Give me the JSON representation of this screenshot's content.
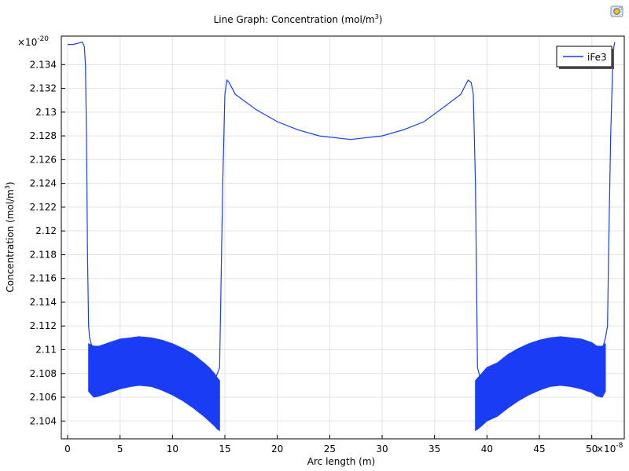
{
  "chart_data": {
    "type": "line",
    "title": "Line Graph: Concentration (mol/m",
    "title_sup": "3",
    "title_end": ")",
    "xlabel": "Arc length (m)",
    "ylabel": "Concentration (mol/m",
    "ylabel_sup": "3",
    "ylabel_end": ")",
    "x_multiplier_base": "×10",
    "x_multiplier_exp": "-8",
    "y_multiplier_base": "×10",
    "y_multiplier_exp": "-20",
    "xlim": [
      -0.6,
      53.1
    ],
    "ylim": [
      2.1025,
      2.1364
    ],
    "xticks": [
      0,
      5,
      10,
      15,
      20,
      25,
      30,
      35,
      40,
      45,
      50
    ],
    "xtick_labels": [
      "0",
      "5",
      "10",
      "15",
      "20",
      "25",
      "30",
      "35",
      "40",
      "45",
      "50"
    ],
    "yticks": [
      2.104,
      2.106,
      2.108,
      2.11,
      2.112,
      2.114,
      2.116,
      2.118,
      2.12,
      2.122,
      2.124,
      2.126,
      2.128,
      2.13,
      2.132,
      2.134
    ],
    "ytick_labels": [
      "2.104",
      "2.106",
      "2.108",
      "2.11",
      "2.112",
      "2.114",
      "2.116",
      "2.118",
      "2.12",
      "2.122",
      "2.124",
      "2.126",
      "2.128",
      "2.13",
      "2.132",
      "2.134"
    ],
    "grid": true,
    "legend_position": "top-right",
    "series": [
      {
        "name": "iFe3",
        "color": "#1a3cf5",
        "x": [
          0,
          0.5,
          1,
          1.4,
          1.6,
          1.7,
          1.8,
          1.9,
          2.0,
          2.1,
          2.4,
          3,
          6.8,
          12,
          13.5,
          14.2,
          14.5,
          14.8,
          15.0,
          15.2,
          15.4,
          16,
          18,
          20,
          22,
          24,
          27,
          30,
          32,
          34,
          36,
          37.5,
          38.2,
          38.5,
          38.7,
          38.9,
          39.1,
          39.3,
          39.5,
          40.0,
          42,
          47,
          51,
          51.3,
          51.5,
          51.6,
          51.8,
          52.0,
          52.1,
          52.2
        ],
        "y": [
          2.1357,
          2.1357,
          2.1358,
          2.1359,
          2.1355,
          2.134,
          2.128,
          2.118,
          2.112,
          2.111,
          2.11,
          2.1098,
          2.1089,
          2.1082,
          2.1079,
          2.1078,
          2.1085,
          2.124,
          2.1315,
          2.1327,
          2.1325,
          2.1315,
          2.1302,
          2.1292,
          2.1285,
          2.128,
          2.1277,
          2.128,
          2.1285,
          2.1292,
          2.1305,
          2.1315,
          2.1327,
          2.1325,
          2.1315,
          2.124,
          2.1085,
          2.1078,
          2.1079,
          2.1082,
          2.1089,
          2.1098,
          2.11,
          2.111,
          2.112,
          2.118,
          2.128,
          2.134,
          2.1355,
          2.1359
        ]
      }
    ],
    "oscillation_bands": [
      {
        "x": [
          2.0,
          2.5,
          3,
          4,
          5,
          6,
          6.8,
          8,
          9,
          10,
          11,
          12,
          13,
          13.5,
          14,
          14.3,
          14.5
        ],
        "y_upper": [
          2.1105,
          2.1103,
          2.1103,
          2.1106,
          2.1109,
          2.111,
          2.1111,
          2.111,
          2.1108,
          2.1105,
          2.1101,
          2.1096,
          2.1089,
          2.1085,
          2.108,
          2.1076,
          2.1074
        ],
        "y_lower": [
          2.1065,
          2.106,
          2.1061,
          2.1064,
          2.1067,
          2.1069,
          2.107,
          2.1069,
          2.1066,
          2.1062,
          2.1057,
          2.1051,
          2.1044,
          2.104,
          2.1036,
          2.1033,
          2.1032
        ]
      },
      {
        "x": [
          38.9,
          39.1,
          39.5,
          40,
          41,
          42,
          43,
          44,
          45,
          46,
          47,
          48,
          49,
          50,
          50.5,
          51,
          51.3
        ],
        "y_upper": [
          2.1074,
          2.1076,
          2.108,
          2.1085,
          2.1089,
          2.1096,
          2.1101,
          2.1105,
          2.1108,
          2.111,
          2.1111,
          2.111,
          2.1109,
          2.1106,
          2.1103,
          2.1103,
          2.1105
        ],
        "y_lower": [
          2.1032,
          2.1033,
          2.1036,
          2.104,
          2.1044,
          2.1051,
          2.1057,
          2.1062,
          2.1066,
          2.1069,
          2.107,
          2.1069,
          2.1067,
          2.1064,
          2.1061,
          2.106,
          2.1065
        ]
      }
    ]
  }
}
